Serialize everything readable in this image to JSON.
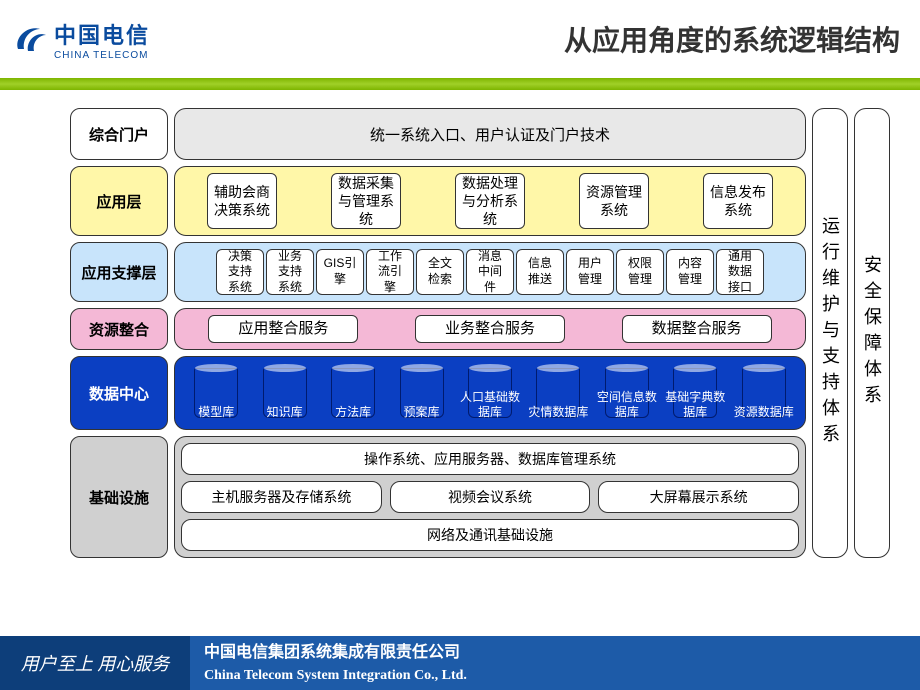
{
  "header": {
    "logo_cn": "中国电信",
    "logo_en": "CHINA TELECOM",
    "title": "从应用角度的系统逻辑结构"
  },
  "side_labels": [
    "运行维护与支持体系",
    "安全保障体系"
  ],
  "layers": [
    {
      "key": "portal",
      "label": "综合门户",
      "label_bg": "#ffffff",
      "body_bg": "#e8e8e8",
      "type": "single",
      "text": "统一系统入口、用户认证及门户技术",
      "height": 52
    },
    {
      "key": "app",
      "label": "应用层",
      "label_bg": "#fff7a8",
      "body_bg": "#fff7a8",
      "type": "app",
      "items": [
        "辅助会商决策系统",
        "数据采集与管理系统",
        "数据处理与分析系统",
        "资源管理系统",
        "信息发布系统"
      ]
    },
    {
      "key": "support",
      "label": "应用支撑层",
      "label_bg": "#c8e4fb",
      "body_bg": "#c8e4fb",
      "type": "support",
      "items": [
        "决策支持系统",
        "业务支持系统",
        "GIS引擎",
        "工作流引擎",
        "全文检索",
        "消息中间件",
        "信息推送",
        "用户管理",
        "权限管理",
        "内容管理",
        "通用数据接口"
      ]
    },
    {
      "key": "resource",
      "label": "资源整合",
      "label_bg": "#f4b8d6",
      "body_bg": "#f4b8d6",
      "type": "resource",
      "items": [
        "应用整合服务",
        "业务整合服务",
        "数据整合服务"
      ]
    },
    {
      "key": "data",
      "label": "数据中心",
      "label_bg": "#0b3fc2",
      "body_bg": "#0b3fc2",
      "label_color": "#ffffff",
      "type": "db",
      "items": [
        "模型库",
        "知识库",
        "方法库",
        "预案库",
        "人口基础数据库",
        "灾情数据库",
        "空间信息数据库",
        "基础字典数据库",
        "资源数据库"
      ]
    },
    {
      "key": "infra",
      "label": "基础设施",
      "label_bg": "#d0d0d0",
      "body_bg": "#d0d0d0",
      "type": "infra",
      "lines": [
        [
          "操作系统、应用服务器、数据库管理系统"
        ],
        [
          "主机服务器及存储系统",
          "视频会议系统",
          "大屏幕展示系统"
        ],
        [
          "网络及通讯基础设施"
        ]
      ]
    }
  ],
  "footer": {
    "slogan": "用户至上  用心服务",
    "cn": "中国电信集团系统集成有限责任公司",
    "en": "China Telecom System Integration Co., Ltd."
  },
  "colors": {
    "sep_bar": "#8bc400",
    "footer_bg": "#1d5ba8",
    "footer_dark": "#0d3e7a",
    "db_fill": "#0b3fc2"
  }
}
